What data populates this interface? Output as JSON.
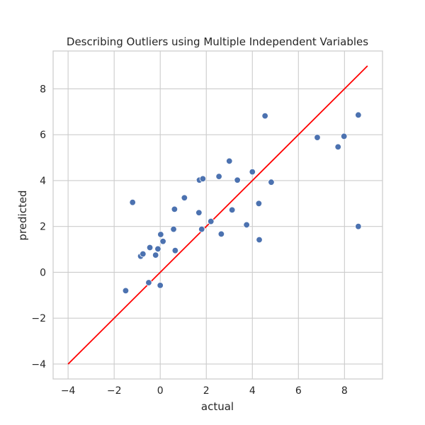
{
  "chart_data": {
    "type": "scatter",
    "title": "Describing Outliers using Multiple Independent Variables",
    "xlabel": "actual",
    "ylabel": "predicted",
    "xlim": [
      -4.65,
      9.65
    ],
    "ylim": [
      -4.65,
      9.65
    ],
    "xticks": [
      -4,
      -2,
      0,
      2,
      4,
      6,
      8
    ],
    "yticks": [
      -4,
      -2,
      0,
      2,
      4,
      6,
      8
    ],
    "xtick_labels": [
      "−4",
      "−2",
      "0",
      "2",
      "4",
      "6",
      "8"
    ],
    "ytick_labels": [
      "−4",
      "−2",
      "0",
      "2",
      "4",
      "6",
      "8"
    ],
    "grid": true,
    "point_color": "#4c72b0",
    "line_color": "#ff0000",
    "reference_line": {
      "x": [
        -4,
        9
      ],
      "y": [
        -4,
        9
      ]
    },
    "points": [
      {
        "x": -1.5,
        "y": -0.8
      },
      {
        "x": -1.2,
        "y": 3.05
      },
      {
        "x": -0.85,
        "y": 0.7
      },
      {
        "x": -0.75,
        "y": 0.8
      },
      {
        "x": -0.5,
        "y": -0.45
      },
      {
        "x": -0.45,
        "y": 1.08
      },
      {
        "x": -0.2,
        "y": 0.75
      },
      {
        "x": -0.1,
        "y": 1.02
      },
      {
        "x": 0.0,
        "y": -0.57
      },
      {
        "x": 0.02,
        "y": 1.65
      },
      {
        "x": 0.12,
        "y": 1.35
      },
      {
        "x": 0.58,
        "y": 1.88
      },
      {
        "x": 0.62,
        "y": 2.75
      },
      {
        "x": 0.65,
        "y": 0.95
      },
      {
        "x": 1.05,
        "y": 3.25
      },
      {
        "x": 1.68,
        "y": 2.6
      },
      {
        "x": 1.7,
        "y": 4.02
      },
      {
        "x": 1.8,
        "y": 1.88
      },
      {
        "x": 1.85,
        "y": 4.08
      },
      {
        "x": 2.2,
        "y": 2.22
      },
      {
        "x": 2.55,
        "y": 4.18
      },
      {
        "x": 2.65,
        "y": 1.67
      },
      {
        "x": 3.0,
        "y": 4.85
      },
      {
        "x": 3.12,
        "y": 2.72
      },
      {
        "x": 3.35,
        "y": 4.02
      },
      {
        "x": 3.75,
        "y": 2.07
      },
      {
        "x": 4.0,
        "y": 4.38
      },
      {
        "x": 4.28,
        "y": 3.0
      },
      {
        "x": 4.3,
        "y": 1.42
      },
      {
        "x": 4.55,
        "y": 6.82
      },
      {
        "x": 4.82,
        "y": 3.93
      },
      {
        "x": 6.82,
        "y": 5.88
      },
      {
        "x": 7.72,
        "y": 5.47
      },
      {
        "x": 7.98,
        "y": 5.93
      },
      {
        "x": 8.6,
        "y": 6.86
      },
      {
        "x": 8.6,
        "y": 2.0
      }
    ]
  }
}
